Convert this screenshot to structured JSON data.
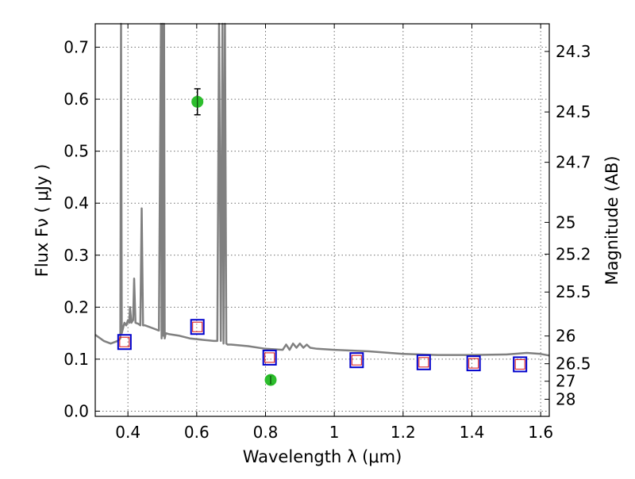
{
  "chart_data": {
    "type": "scatter",
    "xlabel": "Wavelength  λ (μm)",
    "ylabel": "Flux  Fν  ( μJy )",
    "y2label": "Magnitude (AB)",
    "xlim": [
      0.305,
      1.625
    ],
    "ylim": [
      -0.01,
      0.745
    ],
    "xticks": [
      0.4,
      0.6,
      0.8,
      1.0,
      1.2,
      1.4,
      1.6
    ],
    "xticklabels": [
      "0.4",
      "0.6",
      "0.8",
      "1",
      "1.2",
      "1.4",
      "1.6"
    ],
    "yticks": [
      0.0,
      0.1,
      0.2,
      0.3,
      0.4,
      0.5,
      0.6,
      0.7
    ],
    "yticklabels": [
      "0.0",
      "0.1",
      "0.2",
      "0.3",
      "0.4",
      "0.5",
      "0.6",
      "0.7"
    ],
    "magnitude_ticks": [
      24.3,
      24.5,
      24.7,
      25,
      25.2,
      25.5,
      26,
      26.5,
      27,
      28
    ],
    "magnitude_ticklabels": [
      "24.3",
      "24.5",
      "24.7",
      "25",
      "25.2",
      "25.5",
      "26",
      "26.5",
      "27",
      "28"
    ],
    "grid": true,
    "colors": {
      "spectrum": "#808080",
      "observed": "#22bb22",
      "model_box": "#0000cc",
      "model_inner": "#dd1111",
      "errorbar": "#000000"
    },
    "series": [
      {
        "name": "model SED spectrum",
        "kind": "line",
        "x": [
          0.305,
          0.33,
          0.35,
          0.37,
          0.378,
          0.38,
          0.382,
          0.386,
          0.39,
          0.395,
          0.4,
          0.404,
          0.406,
          0.41,
          0.415,
          0.418,
          0.422,
          0.43,
          0.436,
          0.44,
          0.444,
          0.45,
          0.47,
          0.49,
          0.496,
          0.498,
          0.5,
          0.503,
          0.505,
          0.507,
          0.51,
          0.52,
          0.55,
          0.58,
          0.62,
          0.65,
          0.66,
          0.665,
          0.67,
          0.675,
          0.678,
          0.682,
          0.686,
          0.69,
          0.7,
          0.75,
          0.8,
          0.85,
          0.86,
          0.87,
          0.88,
          0.89,
          0.9,
          0.91,
          0.92,
          0.93,
          0.95,
          1.0,
          1.1,
          1.2,
          1.3,
          1.4,
          1.5,
          1.56,
          1.6,
          1.625
        ],
        "y": [
          0.147,
          0.135,
          0.13,
          0.135,
          0.14,
          0.76,
          0.15,
          0.16,
          0.17,
          0.165,
          0.175,
          0.17,
          0.2,
          0.17,
          0.175,
          0.255,
          0.17,
          0.168,
          0.165,
          0.39,
          0.165,
          0.165,
          0.16,
          0.155,
          0.76,
          0.14,
          0.76,
          0.145,
          0.76,
          0.14,
          0.15,
          0.148,
          0.145,
          0.14,
          0.137,
          0.135,
          0.135,
          0.76,
          0.135,
          0.76,
          0.13,
          0.76,
          0.13,
          0.128,
          0.128,
          0.125,
          0.12,
          0.118,
          0.128,
          0.118,
          0.13,
          0.122,
          0.13,
          0.122,
          0.128,
          0.122,
          0.12,
          0.118,
          0.115,
          0.11,
          0.108,
          0.108,
          0.109,
          0.112,
          0.11,
          0.107
        ]
      },
      {
        "name": "observed photometry",
        "kind": "points_with_errors",
        "points": [
          {
            "x": 0.602,
            "y": 0.595,
            "err": 0.025
          },
          {
            "x": 0.815,
            "y": 0.06,
            "err": 0.008
          }
        ]
      },
      {
        "name": "model photometry",
        "kind": "squares",
        "points": [
          {
            "x": 0.39,
            "y": 0.133
          },
          {
            "x": 0.602,
            "y": 0.162
          },
          {
            "x": 0.812,
            "y": 0.103
          },
          {
            "x": 1.065,
            "y": 0.098
          },
          {
            "x": 1.26,
            "y": 0.094
          },
          {
            "x": 1.405,
            "y": 0.092
          },
          {
            "x": 1.54,
            "y": 0.09
          }
        ]
      }
    ]
  }
}
